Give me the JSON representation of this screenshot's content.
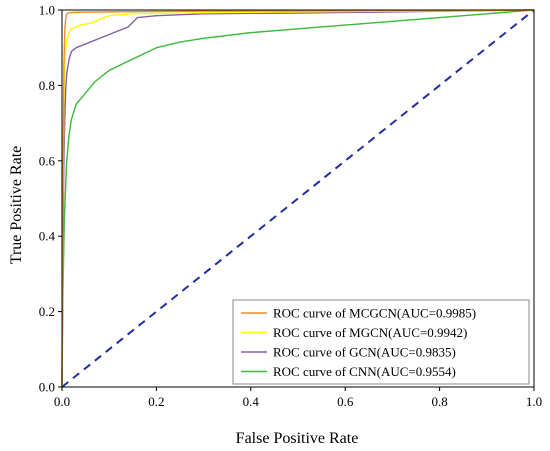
{
  "chart_data": {
    "type": "line",
    "title": "",
    "xlabel": "False Positive Rate",
    "ylabel": "True Positive Rate",
    "xlim": [
      0.0,
      1.0
    ],
    "ylim": [
      0.0,
      1.0
    ],
    "xticks": [
      "0.0",
      "0.2",
      "0.4",
      "0.6",
      "0.8",
      "1.0"
    ],
    "yticks": [
      "0.0",
      "0.2",
      "0.4",
      "0.6",
      "0.8",
      "1.0"
    ],
    "grid": false,
    "legend_position": "bottom-right",
    "series": [
      {
        "name": "ROC curve of MCGCN(AUC=0.9985)",
        "color": "#f28e2b",
        "x": [
          0,
          0.002,
          0.004,
          0.006,
          0.008,
          0.01,
          0.015,
          0.03,
          0.1,
          0.3,
          0.6,
          1.0
        ],
        "y": [
          0,
          0.5,
          0.85,
          0.95,
          0.98,
          0.99,
          0.993,
          0.994,
          0.995,
          0.997,
          0.998,
          1.0
        ]
      },
      {
        "name": "ROC curve of MGCN(AUC=0.9942)",
        "color": "#ffff00",
        "x": [
          0,
          0.002,
          0.004,
          0.006,
          0.008,
          0.01,
          0.015,
          0.02,
          0.04,
          0.06,
          0.08,
          0.1,
          0.15,
          0.3,
          0.5,
          0.8,
          1.0
        ],
        "y": [
          0,
          0.5,
          0.75,
          0.85,
          0.9,
          0.92,
          0.94,
          0.95,
          0.96,
          0.965,
          0.975,
          0.985,
          0.99,
          0.993,
          0.995,
          0.998,
          1.0
        ]
      },
      {
        "name": "ROC curve of GCN(AUC=0.9835)",
        "color": "#8060a8",
        "x": [
          0,
          0.002,
          0.004,
          0.006,
          0.008,
          0.01,
          0.015,
          0.02,
          0.03,
          0.05,
          0.08,
          0.1,
          0.14,
          0.16,
          0.2,
          0.3,
          0.5,
          0.7,
          1.0
        ],
        "y": [
          0,
          0.4,
          0.6,
          0.72,
          0.79,
          0.83,
          0.87,
          0.89,
          0.9,
          0.91,
          0.925,
          0.935,
          0.955,
          0.98,
          0.985,
          0.99,
          0.992,
          0.995,
          1.0
        ]
      },
      {
        "name": "ROC curve of CNN(AUC=0.9554)",
        "color": "#3cb93c",
        "x": [
          0,
          0.002,
          0.005,
          0.01,
          0.015,
          0.02,
          0.03,
          0.05,
          0.07,
          0.1,
          0.15,
          0.2,
          0.25,
          0.3,
          0.4,
          0.5,
          0.6,
          0.7,
          0.8,
          0.9,
          1.0
        ],
        "y": [
          0,
          0.25,
          0.45,
          0.6,
          0.67,
          0.71,
          0.75,
          0.78,
          0.81,
          0.84,
          0.87,
          0.9,
          0.915,
          0.925,
          0.94,
          0.95,
          0.96,
          0.97,
          0.98,
          0.99,
          1.0
        ]
      }
    ],
    "reference_line": {
      "x": [
        0,
        1
      ],
      "y": [
        0,
        1
      ],
      "color": "#1f2fa0",
      "style": "dashed"
    }
  }
}
